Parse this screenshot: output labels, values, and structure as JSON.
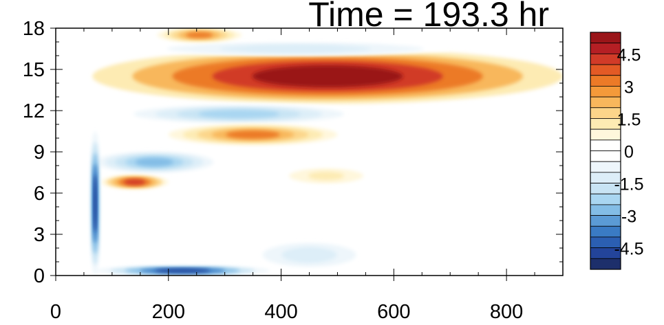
{
  "chart_data": {
    "type": "heatmap",
    "title": "Time = 193.3 hr",
    "xlabel": "",
    "ylabel": "",
    "xlim": [
      0,
      900
    ],
    "ylim": [
      0,
      18
    ],
    "x_ticks": [
      0,
      200,
      400,
      600,
      800
    ],
    "y_ticks": [
      0,
      3,
      6,
      9,
      12,
      15,
      18
    ],
    "colorbar": {
      "levels": [
        -5.5,
        -5,
        -4.5,
        -4,
        -3.5,
        -3,
        -2.5,
        -2,
        -1.5,
        -1,
        -0.5,
        0,
        0.5,
        1,
        1.5,
        2,
        2.5,
        3,
        3.5,
        4,
        4.5,
        5,
        5.5
      ],
      "colors": [
        "#1d2f6b",
        "#23449a",
        "#2b5fb2",
        "#3a7bc4",
        "#5b9bd5",
        "#83bde6",
        "#a9d6f1",
        "#c8e4f4",
        "#ddeef8",
        "#eef6fb",
        "#ffffff",
        "#ffffff",
        "#fff7dc",
        "#fdebb3",
        "#fcd58a",
        "#f8b75c",
        "#f49a3a",
        "#ec7a27",
        "#e35a25",
        "#d13b28",
        "#b51f24",
        "#9a1519"
      ],
      "label_values": [
        4.5,
        3,
        1.5,
        0,
        -1.5,
        -3,
        -4.5
      ],
      "label_texts": [
        "4.5",
        "3",
        "1.5",
        "0",
        "-1.5",
        "-3",
        "-4.5"
      ]
    },
    "features": [
      {
        "feature": "strong warm band",
        "x": [
          65,
          900
        ],
        "y": [
          12.5,
          16.5
        ],
        "peak": 5.5
      },
      {
        "feature": "cool band below warm band",
        "x": [
          100,
          550
        ],
        "y": [
          11,
          12.5
        ],
        "peak": -2.5
      },
      {
        "feature": "cool band above warm band",
        "x": [
          150,
          700
        ],
        "y": [
          16,
          17
        ],
        "peak": -1.5
      },
      {
        "feature": "warm patch",
        "x": [
          180,
          330
        ],
        "y": [
          17,
          18
        ],
        "peak": 3
      },
      {
        "feature": "warm lobe",
        "x": [
          200,
          500
        ],
        "y": [
          9.5,
          11
        ],
        "peak": 3
      },
      {
        "feature": "cool band",
        "x": [
          70,
          280
        ],
        "y": [
          7.5,
          9
        ],
        "peak": -3
      },
      {
        "feature": "warm patch",
        "x": [
          80,
          200
        ],
        "y": [
          6.3,
          7.3
        ],
        "peak": 4
      },
      {
        "feature": "cool vertical front",
        "x": [
          60,
          80
        ],
        "y": [
          0,
          10.5
        ],
        "peak": -5
      },
      {
        "feature": "cool surface layer",
        "x": [
          70,
          380
        ],
        "y": [
          0,
          0.7
        ],
        "peak": -5
      },
      {
        "feature": "weak warm patch",
        "x": [
          380,
          580
        ],
        "y": [
          6.5,
          8
        ],
        "peak": 1
      },
      {
        "feature": "weak cool patch",
        "x": [
          350,
          550
        ],
        "y": [
          0.5,
          2.5
        ],
        "peak": -1.5
      }
    ]
  }
}
